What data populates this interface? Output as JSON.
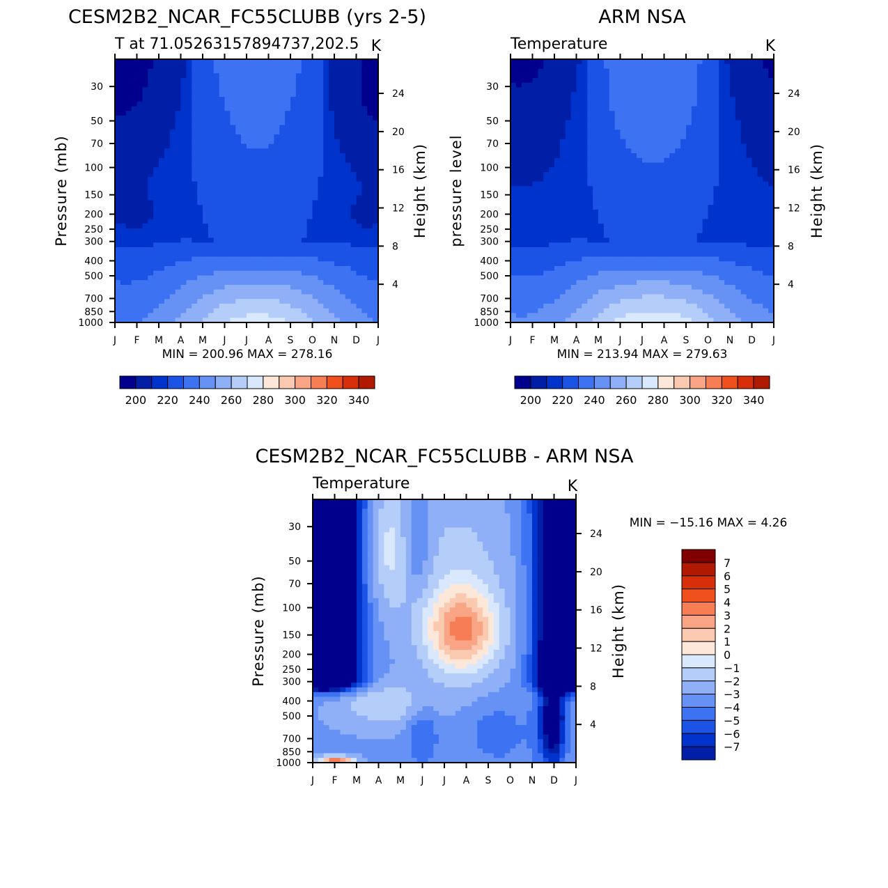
{
  "chart_data": [
    {
      "type": "heatmap",
      "title": "CESM2B2_NCAR_FC55CLUBB (yrs 2-5)",
      "subtitle": "T at 71.05263157894737,202.5",
      "units": "K",
      "ylabel": "Pressure (mb)",
      "ylabel_right": "Height (km)",
      "x_ticks": [
        "J",
        "F",
        "M",
        "A",
        "M",
        "J",
        "J",
        "A",
        "S",
        "O",
        "N",
        "D",
        "J"
      ],
      "y_ticks": [
        30,
        50,
        70,
        100,
        150,
        200,
        250,
        300,
        400,
        500,
        700,
        850,
        1000
      ],
      "height_ticks": [
        4,
        8,
        12,
        16,
        20,
        24
      ],
      "ylim": [
        1000,
        20
      ],
      "y_scale": "log",
      "min_label": "MIN = 200.96 MAX = 278.16",
      "min": 200.96,
      "max": 278.16,
      "levels": [
        190,
        200,
        210,
        220,
        230,
        240,
        250,
        260,
        270,
        280,
        290,
        300,
        310,
        320,
        330,
        340,
        350
      ],
      "colorbar_labels": [
        "200",
        "220",
        "240",
        "260",
        "280",
        "300",
        "320",
        "340"
      ],
      "colorbar_orientation": "horizontal",
      "field": "model"
    },
    {
      "type": "heatmap",
      "title": "ARM NSA",
      "subtitle": "Temperature",
      "units": "K",
      "ylabel": "pressure level",
      "ylabel_right": "Height (km)",
      "x_ticks": [
        "J",
        "F",
        "M",
        "A",
        "M",
        "J",
        "J",
        "A",
        "S",
        "O",
        "N",
        "D",
        "J"
      ],
      "y_ticks": [
        30,
        50,
        70,
        100,
        150,
        200,
        250,
        300,
        400,
        500,
        700,
        850,
        1000
      ],
      "height_ticks": [
        4,
        8,
        12,
        16,
        20,
        24
      ],
      "ylim": [
        1000,
        20
      ],
      "y_scale": "log",
      "min_label": "MIN = 213.94 MAX = 279.63",
      "min": 213.94,
      "max": 279.63,
      "levels": [
        190,
        200,
        210,
        220,
        230,
        240,
        250,
        260,
        270,
        280,
        290,
        300,
        310,
        320,
        330,
        340,
        350
      ],
      "colorbar_labels": [
        "200",
        "220",
        "240",
        "260",
        "280",
        "300",
        "320",
        "340"
      ],
      "colorbar_orientation": "horizontal",
      "field": "obs"
    },
    {
      "type": "heatmap",
      "title": "CESM2B2_NCAR_FC55CLUBB - ARM NSA",
      "subtitle": "Temperature",
      "units": "K",
      "ylabel": "Pressure (mb)",
      "ylabel_right": "Height (km)",
      "x_ticks": [
        "J",
        "F",
        "M",
        "A",
        "M",
        "J",
        "J",
        "A",
        "S",
        "O",
        "N",
        "D",
        "J"
      ],
      "y_ticks": [
        30,
        50,
        70,
        100,
        150,
        200,
        250,
        300,
        400,
        500,
        700,
        850,
        1000
      ],
      "height_ticks": [
        4,
        8,
        12,
        16,
        20,
        24
      ],
      "ylim": [
        1000,
        20
      ],
      "y_scale": "log",
      "min_label": "MIN = -15.16 MAX = 4.26",
      "min": -15.16,
      "max": 4.26,
      "levels": [
        -8,
        -7,
        -6,
        -5,
        -4,
        -3,
        -2,
        -1,
        0,
        1,
        2,
        3,
        4,
        5,
        6,
        7,
        8
      ],
      "colorbar_labels": [
        "7",
        "6",
        "5",
        "4",
        "3",
        "2",
        "1",
        "0",
        "-1",
        "-2",
        "-3",
        "-4",
        "-5",
        "-6",
        "-7"
      ],
      "colorbar_orientation": "vertical",
      "field": "diff"
    }
  ],
  "colors": {
    "palette": [
      "#00008c",
      "#001ea6",
      "#0033cc",
      "#1a53e6",
      "#3d73f2",
      "#6692f5",
      "#8fb0f7",
      "#b5cdf9",
      "#d9e8fc",
      "#fde7d8",
      "#fbc8b0",
      "#f9a585",
      "#f77d55",
      "#f0501e",
      "#d62f0a",
      "#b01a00",
      "#800000"
    ],
    "fill_missing": "#ffffff",
    "axis": "#000000"
  }
}
